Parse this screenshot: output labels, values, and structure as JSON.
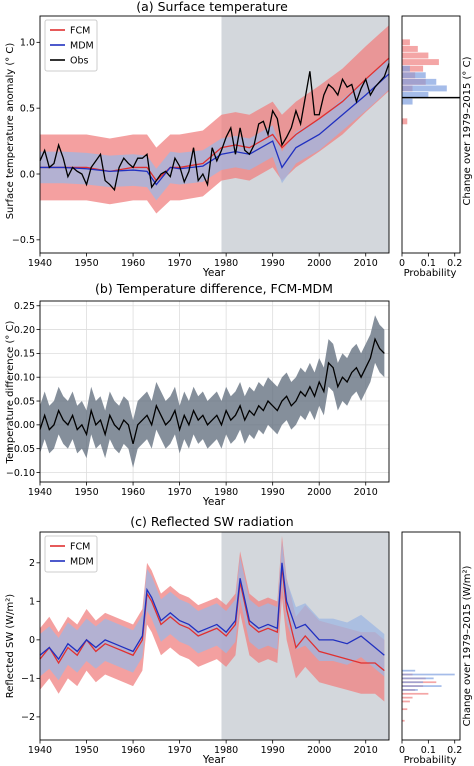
{
  "chart_data": [
    {
      "id": "a",
      "type": "line",
      "title": "(a) Surface temperature",
      "xlabel": "Year",
      "ylabel": "Surface temperature anomaly (° C)",
      "xlim": [
        1940,
        2015
      ],
      "ylim": [
        -0.6,
        1.2
      ],
      "xticks": [
        1940,
        1950,
        1960,
        1970,
        1980,
        1990,
        2000,
        2010
      ],
      "yticks": [
        -0.5,
        0.0,
        0.5,
        1.0
      ],
      "ytick_labels": [
        "−0.5",
        "0.0",
        "0.5",
        "1.0"
      ],
      "shaded_period": [
        1979,
        2015
      ],
      "grid": false,
      "legend_position": "top-left",
      "series": [
        {
          "name": "FCM",
          "color": "#e03030",
          "x": [
            1940,
            1945,
            1950,
            1955,
            1960,
            1963,
            1965,
            1968,
            1970,
            1975,
            1979,
            1982,
            1985,
            1990,
            1992,
            1995,
            2000,
            2005,
            2010,
            2015
          ],
          "y": [
            0.05,
            0.05,
            0.05,
            0.02,
            0.05,
            0.05,
            -0.05,
            0.05,
            0.05,
            0.08,
            0.2,
            0.22,
            0.2,
            0.3,
            0.2,
            0.3,
            0.42,
            0.55,
            0.72,
            0.88
          ]
        },
        {
          "name": "MDM",
          "color": "#2030c0",
          "x": [
            1940,
            1945,
            1950,
            1955,
            1960,
            1963,
            1965,
            1968,
            1970,
            1975,
            1979,
            1982,
            1985,
            1990,
            1992,
            1995,
            2000,
            2005,
            2010,
            2015
          ],
          "y": [
            0.05,
            0.05,
            0.04,
            0.02,
            0.03,
            0.02,
            -0.08,
            0.05,
            0.04,
            0.06,
            0.15,
            0.17,
            0.15,
            0.25,
            0.05,
            0.2,
            0.3,
            0.45,
            0.6,
            0.76
          ]
        },
        {
          "name": "Obs",
          "color": "#000000",
          "x": [
            1940,
            1941,
            1942,
            1943,
            1944,
            1945,
            1946,
            1947,
            1948,
            1949,
            1950,
            1951,
            1952,
            1953,
            1954,
            1955,
            1956,
            1957,
            1958,
            1959,
            1960,
            1961,
            1962,
            1963,
            1964,
            1965,
            1966,
            1967,
            1968,
            1969,
            1970,
            1971,
            1972,
            1973,
            1974,
            1975,
            1976,
            1977,
            1978,
            1979,
            1980,
            1981,
            1982,
            1983,
            1984,
            1985,
            1986,
            1987,
            1988,
            1989,
            1990,
            1991,
            1992,
            1993,
            1994,
            1995,
            1996,
            1997,
            1998,
            1999,
            2000,
            2001,
            2002,
            2003,
            2004,
            2005,
            2006,
            2007,
            2008,
            2009,
            2010,
            2011,
            2012,
            2013,
            2014,
            2015
          ],
          "y": [
            0.1,
            0.18,
            0.05,
            0.08,
            0.22,
            0.12,
            -0.02,
            0.05,
            0.02,
            0.0,
            -0.08,
            0.05,
            0.1,
            0.15,
            -0.05,
            -0.08,
            -0.12,
            0.05,
            0.12,
            0.08,
            0.05,
            0.12,
            0.12,
            0.15,
            -0.1,
            -0.05,
            0.0,
            0.02,
            -0.02,
            0.12,
            0.06,
            -0.06,
            0.02,
            0.2,
            -0.05,
            0.0,
            -0.08,
            0.2,
            0.1,
            0.18,
            0.28,
            0.35,
            0.15,
            0.35,
            0.18,
            0.15,
            0.22,
            0.38,
            0.4,
            0.3,
            0.48,
            0.42,
            0.22,
            0.28,
            0.35,
            0.48,
            0.38,
            0.58,
            0.78,
            0.45,
            0.45,
            0.6,
            0.68,
            0.65,
            0.6,
            0.72,
            0.66,
            0.68,
            0.55,
            0.65,
            0.72,
            0.6,
            0.66,
            0.7,
            0.74,
            0.84
          ]
        }
      ],
      "bands": [
        {
          "series": "FCM",
          "color": "#f08080",
          "lower_offset": -0.25,
          "upper_offset": 0.25
        },
        {
          "series": "MDM",
          "color": "#9db7e3",
          "lower_offset": -0.12,
          "upper_offset": 0.12
        }
      ],
      "side_panel": {
        "type": "histogram",
        "xlabel": "Probability",
        "ylabel": "Change over 1979–2015 (° C)",
        "xticks": [
          0,
          0.1,
          0.2
        ],
        "xtick_labels": [
          "0",
          "0.1",
          "0.2"
        ],
        "obs_line": 0.58,
        "fcm": [
          {
            "y": 1.0,
            "p": 0.03
          },
          {
            "y": 0.95,
            "p": 0.06
          },
          {
            "y": 0.9,
            "p": 0.1
          },
          {
            "y": 0.85,
            "p": 0.14
          },
          {
            "y": 0.8,
            "p": 0.08
          },
          {
            "y": 0.75,
            "p": 0.05
          },
          {
            "y": 0.7,
            "p": 0.09
          },
          {
            "y": 0.65,
            "p": 0.04
          },
          {
            "y": 0.4,
            "p": 0.02
          }
        ],
        "mdm": [
          {
            "y": 0.8,
            "p": 0.03
          },
          {
            "y": 0.75,
            "p": 0.09
          },
          {
            "y": 0.7,
            "p": 0.13
          },
          {
            "y": 0.65,
            "p": 0.17
          },
          {
            "y": 0.6,
            "p": 0.1
          },
          {
            "y": 0.55,
            "p": 0.04
          }
        ]
      }
    },
    {
      "id": "b",
      "type": "line",
      "title": "(b) Temperature difference, FCM-MDM",
      "xlabel": "Year",
      "ylabel": "Temperature difference (° C)",
      "xlim": [
        1940,
        2015
      ],
      "ylim": [
        -0.12,
        0.26
      ],
      "xticks": [
        1940,
        1950,
        1960,
        1970,
        1980,
        1990,
        2000,
        2010
      ],
      "yticks": [
        -0.1,
        -0.05,
        0.0,
        0.05,
        0.1,
        0.15,
        0.2,
        0.25
      ],
      "ytick_labels": [
        "−0.10",
        "−0.05",
        "0.00",
        "0.05",
        "0.10",
        "0.15",
        "0.20",
        "0.25"
      ],
      "grid": true,
      "series": [
        {
          "name": "FCM-MDM",
          "color": "#000000",
          "x": [
            1940,
            1941,
            1942,
            1943,
            1944,
            1945,
            1946,
            1947,
            1948,
            1949,
            1950,
            1951,
            1952,
            1953,
            1954,
            1955,
            1956,
            1957,
            1958,
            1959,
            1960,
            1961,
            1962,
            1963,
            1964,
            1965,
            1966,
            1967,
            1968,
            1969,
            1970,
            1971,
            1972,
            1973,
            1974,
            1975,
            1976,
            1977,
            1978,
            1979,
            1980,
            1981,
            1982,
            1983,
            1984,
            1985,
            1986,
            1987,
            1988,
            1989,
            1990,
            1991,
            1992,
            1993,
            1994,
            1995,
            1996,
            1997,
            1998,
            1999,
            2000,
            2001,
            2002,
            2003,
            2004,
            2005,
            2006,
            2007,
            2008,
            2009,
            2010,
            2011,
            2012,
            2013,
            2014
          ],
          "y": [
            -0.01,
            0.02,
            -0.01,
            0.0,
            0.03,
            0.01,
            0.0,
            0.02,
            -0.01,
            0.0,
            -0.02,
            0.03,
            0.0,
            0.01,
            -0.02,
            0.02,
            0.0,
            -0.01,
            0.01,
            0.0,
            -0.04,
            0.0,
            0.01,
            0.02,
            0.0,
            0.04,
            0.02,
            0.0,
            0.01,
            0.03,
            -0.01,
            0.02,
            0.0,
            0.03,
            0.01,
            0.02,
            0.0,
            0.01,
            0.02,
            0.0,
            0.03,
            0.01,
            0.02,
            0.04,
            0.01,
            0.03,
            0.02,
            0.04,
            0.03,
            0.05,
            0.04,
            0.03,
            0.05,
            0.06,
            0.04,
            0.05,
            0.07,
            0.06,
            0.08,
            0.06,
            0.09,
            0.07,
            0.13,
            0.12,
            0.08,
            0.1,
            0.09,
            0.11,
            0.12,
            0.1,
            0.12,
            0.14,
            0.18,
            0.16,
            0.15
          ]
        }
      ],
      "bands": [
        {
          "series": "FCM-MDM",
          "color": "#5c6a7a",
          "lower_offset": -0.05,
          "upper_offset": 0.05
        }
      ]
    },
    {
      "id": "c",
      "type": "line",
      "title": "(c) Reflected SW radiation",
      "xlabel": "Year",
      "ylabel": "Reflected SW (W/m²)",
      "xlim": [
        1940,
        2015
      ],
      "ylim": [
        -2.6,
        2.8
      ],
      "xticks": [
        1940,
        1950,
        1960,
        1970,
        1980,
        1990,
        2000,
        2010
      ],
      "yticks": [
        -2,
        -1,
        0,
        1,
        2
      ],
      "ytick_labels": [
        "−2",
        "−1",
        "0",
        "1",
        "2"
      ],
      "shaded_period": [
        1979,
        2015
      ],
      "grid": false,
      "legend_position": "top-left",
      "series": [
        {
          "name": "FCM",
          "color": "#e03030",
          "x": [
            1940,
            1942,
            1944,
            1946,
            1948,
            1950,
            1952,
            1954,
            1956,
            1958,
            1960,
            1962,
            1963,
            1964,
            1966,
            1968,
            1970,
            1972,
            1974,
            1976,
            1978,
            1980,
            1982,
            1983,
            1985,
            1987,
            1989,
            1991,
            1992,
            1993,
            1995,
            1997,
            2000,
            2003,
            2006,
            2009,
            2012,
            2014
          ],
          "y": [
            -0.5,
            -0.2,
            -0.6,
            -0.2,
            -0.4,
            0.0,
            -0.3,
            -0.1,
            -0.2,
            -0.3,
            -0.4,
            0.0,
            1.2,
            1.0,
            0.4,
            0.6,
            0.4,
            0.3,
            0.1,
            0.2,
            0.3,
            0.1,
            0.4,
            1.5,
            0.4,
            0.2,
            0.3,
            0.2,
            1.9,
            0.8,
            -0.2,
            0.1,
            -0.3,
            -0.4,
            -0.5,
            -0.6,
            -0.6,
            -0.8
          ]
        },
        {
          "name": "MDM",
          "color": "#2030c0",
          "x": [
            1940,
            1942,
            1944,
            1946,
            1948,
            1950,
            1952,
            1954,
            1956,
            1958,
            1960,
            1962,
            1963,
            1964,
            1966,
            1968,
            1970,
            1972,
            1974,
            1976,
            1978,
            1980,
            1982,
            1983,
            1985,
            1987,
            1989,
            1991,
            1992,
            1993,
            1995,
            1997,
            2000,
            2003,
            2006,
            2009,
            2012,
            2014
          ],
          "y": [
            -0.4,
            -0.2,
            -0.5,
            -0.1,
            -0.3,
            0.0,
            -0.2,
            0.0,
            -0.1,
            -0.2,
            -0.3,
            0.1,
            1.3,
            1.1,
            0.5,
            0.7,
            0.5,
            0.4,
            0.2,
            0.3,
            0.4,
            0.2,
            0.5,
            1.6,
            0.5,
            0.3,
            0.4,
            0.3,
            2.0,
            1.0,
            0.3,
            0.4,
            0.0,
            0.0,
            -0.1,
            0.1,
            -0.2,
            -0.4
          ]
        }
      ],
      "bands": [
        {
          "series": "FCM",
          "color": "#f08080",
          "lower_offset": -0.8,
          "upper_offset": 0.8
        },
        {
          "series": "MDM",
          "color": "#9db7e3",
          "lower_offset": -0.55,
          "upper_offset": 0.55
        }
      ],
      "side_panel": {
        "type": "histogram",
        "xlabel": "Probability",
        "ylabel": "Change over 1979–2015 (W/m²)",
        "xticks": [
          0,
          0.1,
          0.2
        ],
        "xtick_labels": [
          "0",
          "0.1",
          "0.2"
        ],
        "fcm": [
          {
            "y": -0.9,
            "p": 0.04
          },
          {
            "y": -1.0,
            "p": 0.09
          },
          {
            "y": -1.1,
            "p": 0.13
          },
          {
            "y": -1.2,
            "p": 0.08
          },
          {
            "y": -1.3,
            "p": 0.05
          },
          {
            "y": -1.4,
            "p": 0.1
          },
          {
            "y": -1.5,
            "p": 0.04
          },
          {
            "y": -1.6,
            "p": 0.03
          },
          {
            "y": -1.8,
            "p": 0.02
          },
          {
            "y": -2.1,
            "p": 0.01
          }
        ],
        "mdm": [
          {
            "y": -0.8,
            "p": 0.05
          },
          {
            "y": -0.9,
            "p": 0.2
          },
          {
            "y": -1.0,
            "p": 0.12
          },
          {
            "y": -1.1,
            "p": 0.08
          },
          {
            "y": -1.2,
            "p": 0.15
          },
          {
            "y": -1.3,
            "p": 0.06
          }
        ]
      }
    }
  ]
}
